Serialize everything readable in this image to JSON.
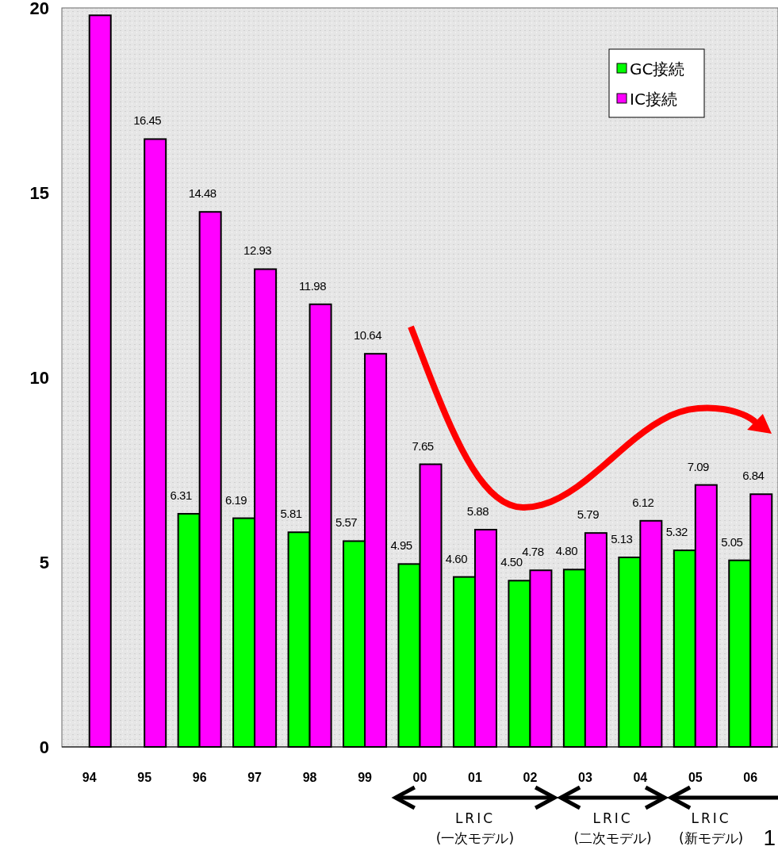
{
  "chart_data": {
    "type": "bar",
    "categories": [
      "94",
      "95",
      "96",
      "97",
      "98",
      "99",
      "00",
      "01",
      "02",
      "03",
      "04",
      "05",
      "06"
    ],
    "series": [
      {
        "name": "GC接続",
        "color": "#00ff00",
        "values": [
          null,
          null,
          6.31,
          6.19,
          5.81,
          5.57,
          4.95,
          4.6,
          4.5,
          4.8,
          5.13,
          5.32,
          5.05
        ],
        "value_labels": [
          null,
          null,
          "6.31",
          "6.19",
          "5.81",
          "5.57",
          "4.95",
          "4.60",
          "4.50",
          "4.80",
          "5.13",
          "5.32",
          "5.05"
        ]
      },
      {
        "name": "IC接続",
        "color": "#ff00ff",
        "values": [
          19.8,
          16.45,
          14.48,
          12.93,
          11.98,
          10.64,
          7.65,
          5.88,
          4.78,
          5.79,
          6.12,
          7.09,
          6.84
        ],
        "value_labels": [
          null,
          "16.45",
          "14.48",
          "12.93",
          "11.98",
          "10.64",
          "7.65",
          "5.88",
          "4.78",
          "5.79",
          "6.12",
          "7.09",
          "6.84"
        ]
      }
    ],
    "ylim": [
      0,
      20
    ],
    "yticks": [
      0,
      5,
      10,
      15,
      20
    ],
    "grid": false,
    "legend": "top right",
    "annotations": [
      "LRIC (一次モデル)",
      "LRIC (二次モデル)",
      "LRIC (新モデル)",
      "1"
    ]
  }
}
